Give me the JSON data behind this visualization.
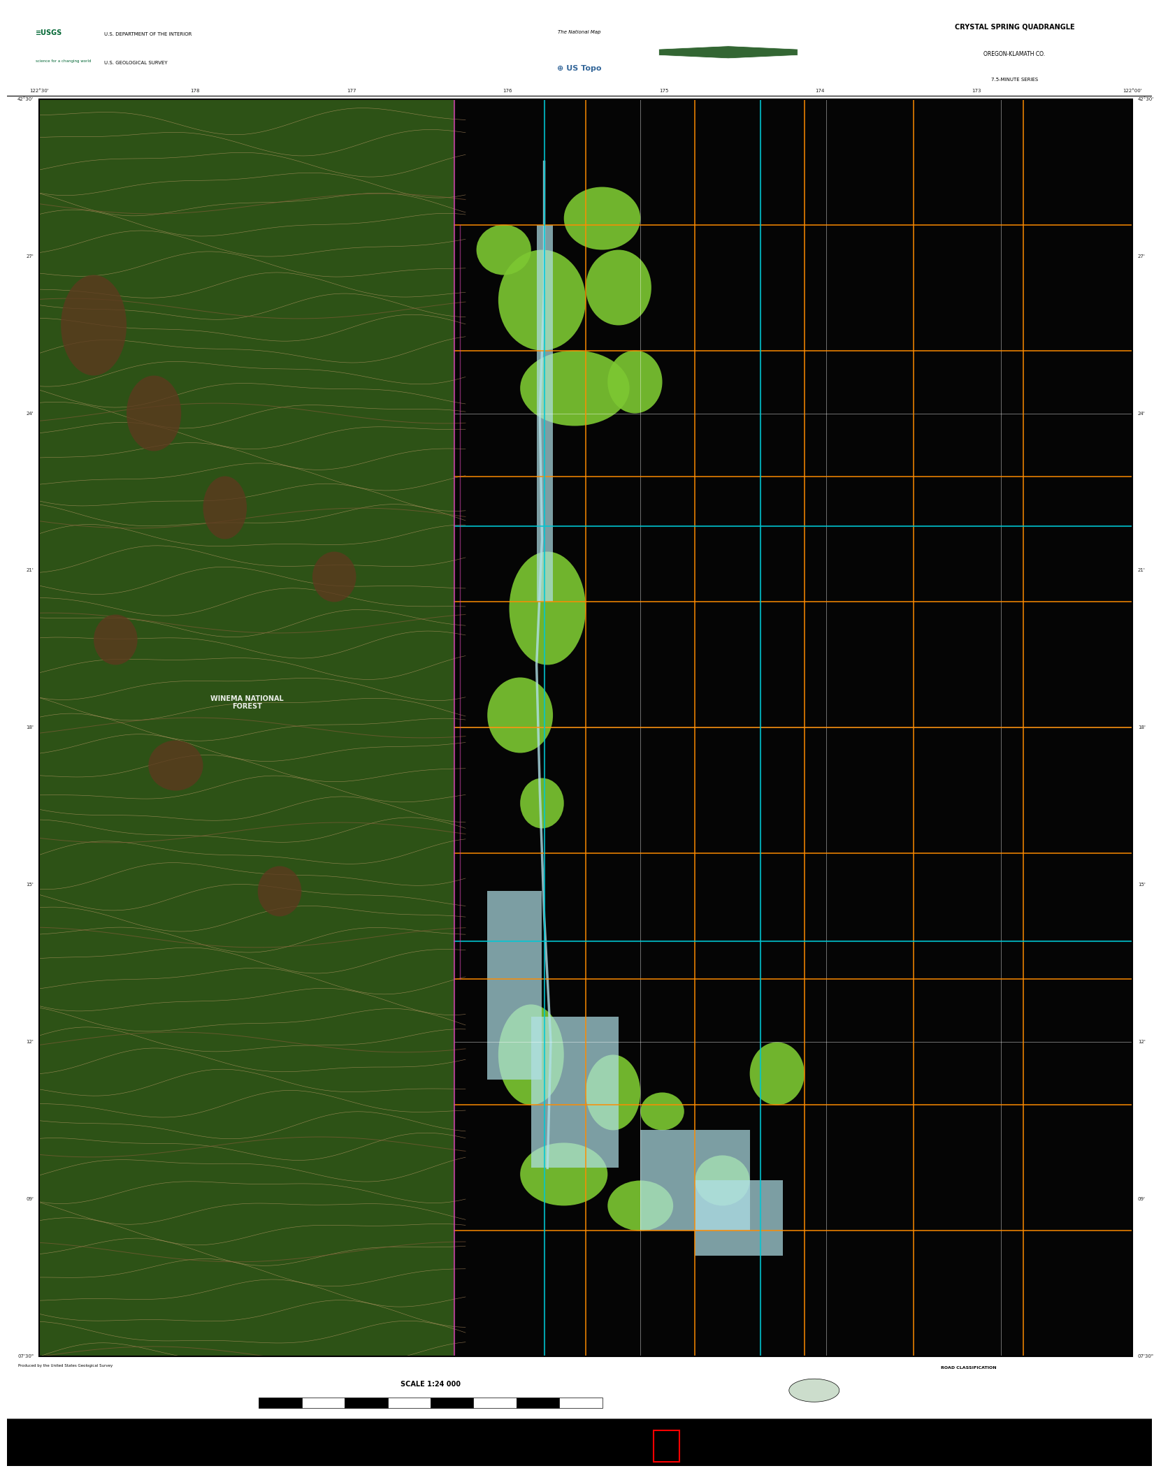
{
  "title": "CRYSTAL SPRING QUADRANGLE",
  "subtitle1": "OREGON-KLAMATH CO.",
  "subtitle2": "7.5-MINUTE SERIES",
  "header_agency": "U.S. DEPARTMENT OF THE INTERIOR",
  "header_survey": "U.S. GEOLOGICAL SURVEY",
  "scale_text": "SCALE 1:24 000",
  "map_bg_left": "#2d5216",
  "map_bg_right": "#050505",
  "margin_color": "#ffffff",
  "fig_width": 16.38,
  "fig_height": 20.88,
  "contour_color": "#c8a06e",
  "contour_dark": "#8b5e3c",
  "vegetation_color": "#7dc832",
  "water_color": "#b0e0e8",
  "road_color_orange": "#ff8c00",
  "cyan_grid": "#00c8d4",
  "white_line": "#ffffff",
  "boundary_color": "#cc44aa",
  "brown_patch": "#5c3a1e"
}
